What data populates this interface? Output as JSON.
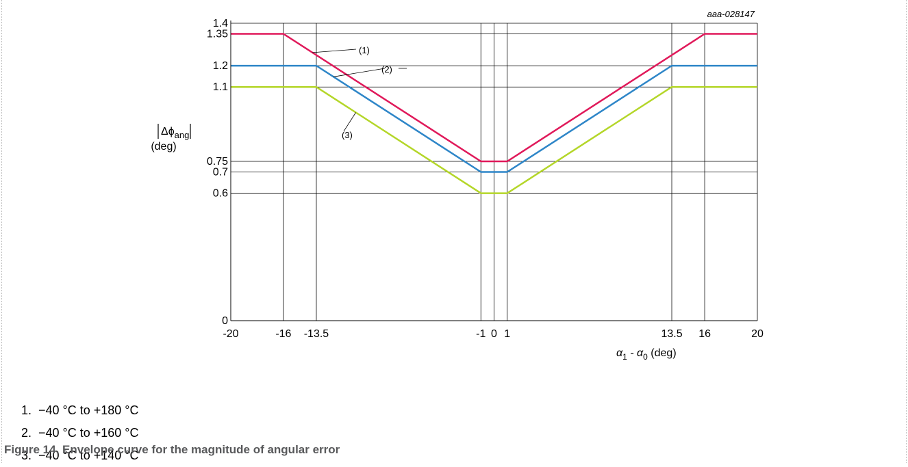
{
  "chart_data": {
    "type": "line",
    "figure_id": "aaa-028147",
    "xlabel": "α1 - α0 (deg)",
    "xlabel_parts": {
      "alpha1": "α",
      "sub1": "1",
      "mid": " - α",
      "sub0": "0",
      "unit": " (deg)"
    },
    "ylabel": "|Δφang| (deg)",
    "ylabel_parts": {
      "delta_phi": "Δϕ",
      "sub": "ang",
      "unit": "(deg)"
    },
    "xlim": [
      -20,
      20
    ],
    "ylim": [
      0,
      1.4
    ],
    "x_ticks": [
      -20,
      -16,
      -13.5,
      -1,
      0,
      1,
      13.5,
      16,
      20
    ],
    "x_tick_labels": [
      "-20",
      "-16",
      "-13.5",
      "-1",
      "0",
      "1",
      "13.5",
      "16",
      "20"
    ],
    "y_ticks": [
      0,
      0.6,
      0.7,
      0.75,
      1.1,
      1.2,
      1.35,
      1.4
    ],
    "y_tick_labels": [
      "0",
      "0.6",
      "0.7",
      "0.75",
      "1.1",
      "1.2",
      "1.35",
      "1.4"
    ],
    "grid": true,
    "series": [
      {
        "name": "(1)",
        "color": "#e0195a",
        "x": [
          -20,
          -16,
          -1,
          1,
          16,
          20
        ],
        "y": [
          1.35,
          1.35,
          0.75,
          0.75,
          1.35,
          1.35
        ]
      },
      {
        "name": "(2)",
        "color": "#2e86c8",
        "x": [
          -20,
          -13.5,
          -1,
          1,
          13.5,
          20
        ],
        "y": [
          1.2,
          1.2,
          0.7,
          0.7,
          1.2,
          1.2
        ]
      },
      {
        "name": "(3)",
        "color": "#b4d629",
        "x": [
          -20,
          -13.5,
          -1,
          1,
          13.5,
          20
        ],
        "y": [
          1.1,
          1.1,
          0.6,
          0.6,
          1.1,
          1.1
        ]
      }
    ]
  },
  "notes": [
    {
      "num": "1.",
      "text": "−40 °C to +180 °C"
    },
    {
      "num": "2.",
      "text": "−40 °C to +160 °C"
    },
    {
      "num": "3.",
      "text": "−40 °C to +140 °C"
    }
  ],
  "caption": "Figure 14.  Envelope curve for the magnitude of angular error",
  "colors": {
    "frame": "#bfbfbf",
    "caption": "#58595b"
  }
}
